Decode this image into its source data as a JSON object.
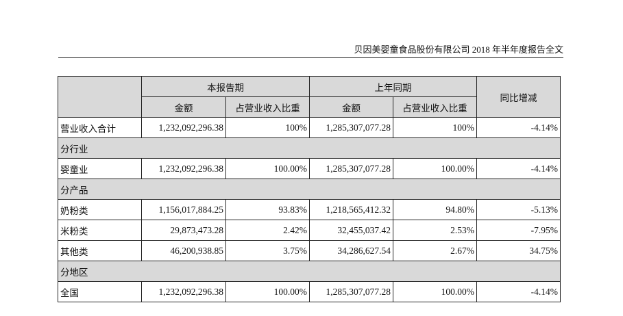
{
  "header": {
    "title": "贝因美婴童食品股份有限公司 2018 年半年度报告全文"
  },
  "table": {
    "groups": [
      "本报告期",
      "上年同期",
      "同比增减"
    ],
    "subheaders": [
      "金额",
      "占营业收入比重",
      "金额",
      "占营业收入比重"
    ],
    "rows": [
      [
        "营业收入合计",
        "1,232,092,296.38",
        "100%",
        "1,285,307,077.28",
        "100%",
        "-4.14%"
      ],
      [
        "分行业"
      ],
      [
        "婴童业",
        "1,232,092,296.38",
        "100.00%",
        "1,285,307,077.28",
        "100.00%",
        "-4.14%"
      ],
      [
        "分产品"
      ],
      [
        "奶粉类",
        "1,156,017,884.25",
        "93.83%",
        "1,218,565,412.32",
        "94.80%",
        "-5.13%"
      ],
      [
        "米粉类",
        "29,873,473.28",
        "2.42%",
        "32,455,037.42",
        "2.53%",
        "-7.95%"
      ],
      [
        "其他类",
        "46,200,938.85",
        "3.75%",
        "34,286,627.54",
        "2.67%",
        "34.75%"
      ],
      [
        "分地区"
      ],
      [
        "全国",
        "1,232,092,296.38",
        "100.00%",
        "1,285,307,077.28",
        "100.00%",
        "-4.14%"
      ]
    ]
  }
}
